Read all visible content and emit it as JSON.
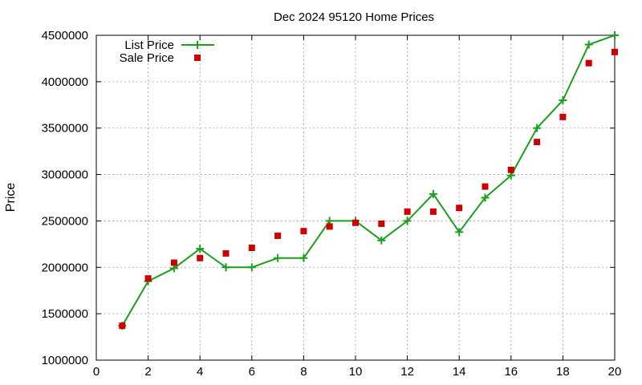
{
  "chart_data": {
    "type": "line",
    "title": "Dec 2024 95120 Home Prices",
    "xlabel": "",
    "ylabel": "Price",
    "xlim": [
      0,
      20
    ],
    "ylim": [
      1000000,
      4500000
    ],
    "x_ticks": [
      0,
      2,
      4,
      6,
      8,
      10,
      12,
      14,
      16,
      18,
      20
    ],
    "y_ticks": [
      1000000,
      1500000,
      2000000,
      2500000,
      3000000,
      3500000,
      4000000,
      4500000
    ],
    "grid": true,
    "legend_position": "top-left",
    "series": [
      {
        "name": "List Price",
        "style": "line-points",
        "color": "#1aa01a",
        "x": [
          1,
          2,
          3,
          4,
          5,
          6,
          7,
          8,
          9,
          10,
          11,
          12,
          13,
          14,
          15,
          16,
          17,
          18,
          19,
          20
        ],
        "values": [
          1370000,
          1850000,
          1990000,
          2200000,
          2000000,
          2000000,
          2100000,
          2100000,
          2500000,
          2500000,
          2290000,
          2500000,
          2790000,
          2380000,
          2750000,
          2990000,
          3500000,
          3800000,
          4400000,
          4500000
        ]
      },
      {
        "name": "Sale Price",
        "style": "points",
        "color": "#cc0000",
        "x": [
          1,
          2,
          3,
          4,
          5,
          6,
          7,
          8,
          9,
          10,
          11,
          12,
          13,
          14,
          15,
          16,
          17,
          18,
          19,
          20
        ],
        "values": [
          1370000,
          1880000,
          2050000,
          2100000,
          2150000,
          2210000,
          2340000,
          2390000,
          2440000,
          2480000,
          2470000,
          2600000,
          2600000,
          2640000,
          2870000,
          3050000,
          3350000,
          3620000,
          4200000,
          4320000
        ]
      }
    ]
  }
}
